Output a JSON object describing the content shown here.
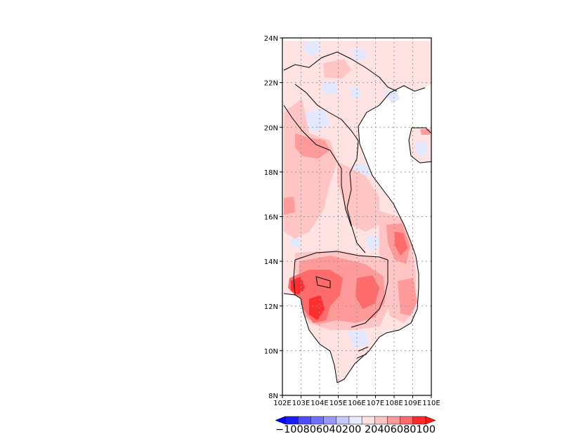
{
  "map": {
    "lat_range": [
      8,
      24
    ],
    "lon_range": [
      102,
      110
    ],
    "lat_ticks": [
      "24N",
      "22N",
      "20N",
      "18N",
      "16N",
      "14N",
      "12N",
      "10N",
      "8N"
    ],
    "lon_ticks": [
      "102E",
      "103E",
      "104E",
      "105E",
      "106E",
      "107E",
      "108E",
      "109E",
      "110E"
    ],
    "grid": "dotted",
    "field_description": "percent anomaly field over Indochina"
  },
  "colorbar": {
    "levels": [
      "-100",
      "-80",
      "-60",
      "-40",
      "-20",
      "0",
      "20",
      "40",
      "60",
      "80",
      "100"
    ],
    "colors": [
      "#1a1aff",
      "#4d4dff",
      "#7070ff",
      "#9898ff",
      "#c6c8ff",
      "#e8ecff",
      "#ffe0e0",
      "#ffc2c2",
      "#ff9a9a",
      "#ff6a6a",
      "#ff2a2a"
    ],
    "under_color": "#0000ff",
    "over_color": "#ff1a1a",
    "printed_label": "−100806040200 20406080100"
  },
  "colors": {
    "land_base": "#ffe3e3",
    "light_blue": "#e4e8ff",
    "pink": "#ffc4c4",
    "red": "#ff9a9a",
    "deep_red": "#ff6a6a",
    "hot": "#ff2e2e",
    "sea": "#ffffff",
    "boundary": "#000000"
  }
}
